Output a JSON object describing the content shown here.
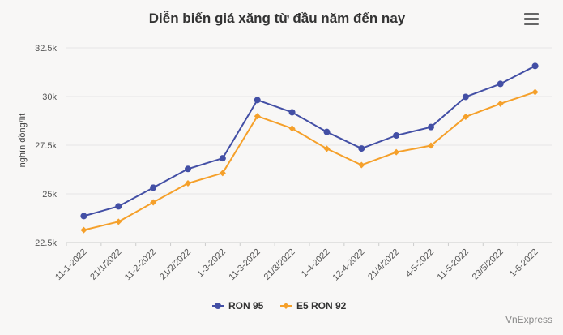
{
  "chart_data": {
    "type": "line",
    "title": "Diễn biến giá xăng từ đầu năm đến nay",
    "ylabel": "nghìn đồng/lít",
    "xlabel": "",
    "categories": [
      "11-1-2022",
      "21/1/2022",
      "11-2-2022",
      "21/2/2022",
      "1-3-2022",
      "11-3-2022",
      "21/3/2022",
      "1-4-2022",
      "12-4-2022",
      "21/4/2022",
      "4-5-2022",
      "11-5-2022",
      "23/5/2022",
      "1-6-2022"
    ],
    "ylim": [
      22500,
      33000
    ],
    "yticks": [
      22500,
      25000,
      27500,
      30000,
      32500
    ],
    "ytick_labels": [
      "22.5k",
      "25k",
      "27.5k",
      "30k",
      "32.5k"
    ],
    "grid": true,
    "legend_position": "bottom-center",
    "series": [
      {
        "name": "RON 95",
        "color": "#434fa5",
        "marker": "circle",
        "values": [
          23860,
          24360,
          25320,
          26280,
          26830,
          29820,
          29190,
          28180,
          27330,
          28000,
          28430,
          29980,
          30650,
          31570
        ]
      },
      {
        "name": "E5 RON 92",
        "color": "#f5a02a",
        "marker": "diamond",
        "values": [
          23140,
          23570,
          24560,
          25540,
          26070,
          28990,
          28360,
          27320,
          26480,
          27140,
          27480,
          28960,
          29630,
          30230
        ]
      }
    ]
  },
  "credit": "VnExpress",
  "menu_icon": "hamburger-menu-icon"
}
